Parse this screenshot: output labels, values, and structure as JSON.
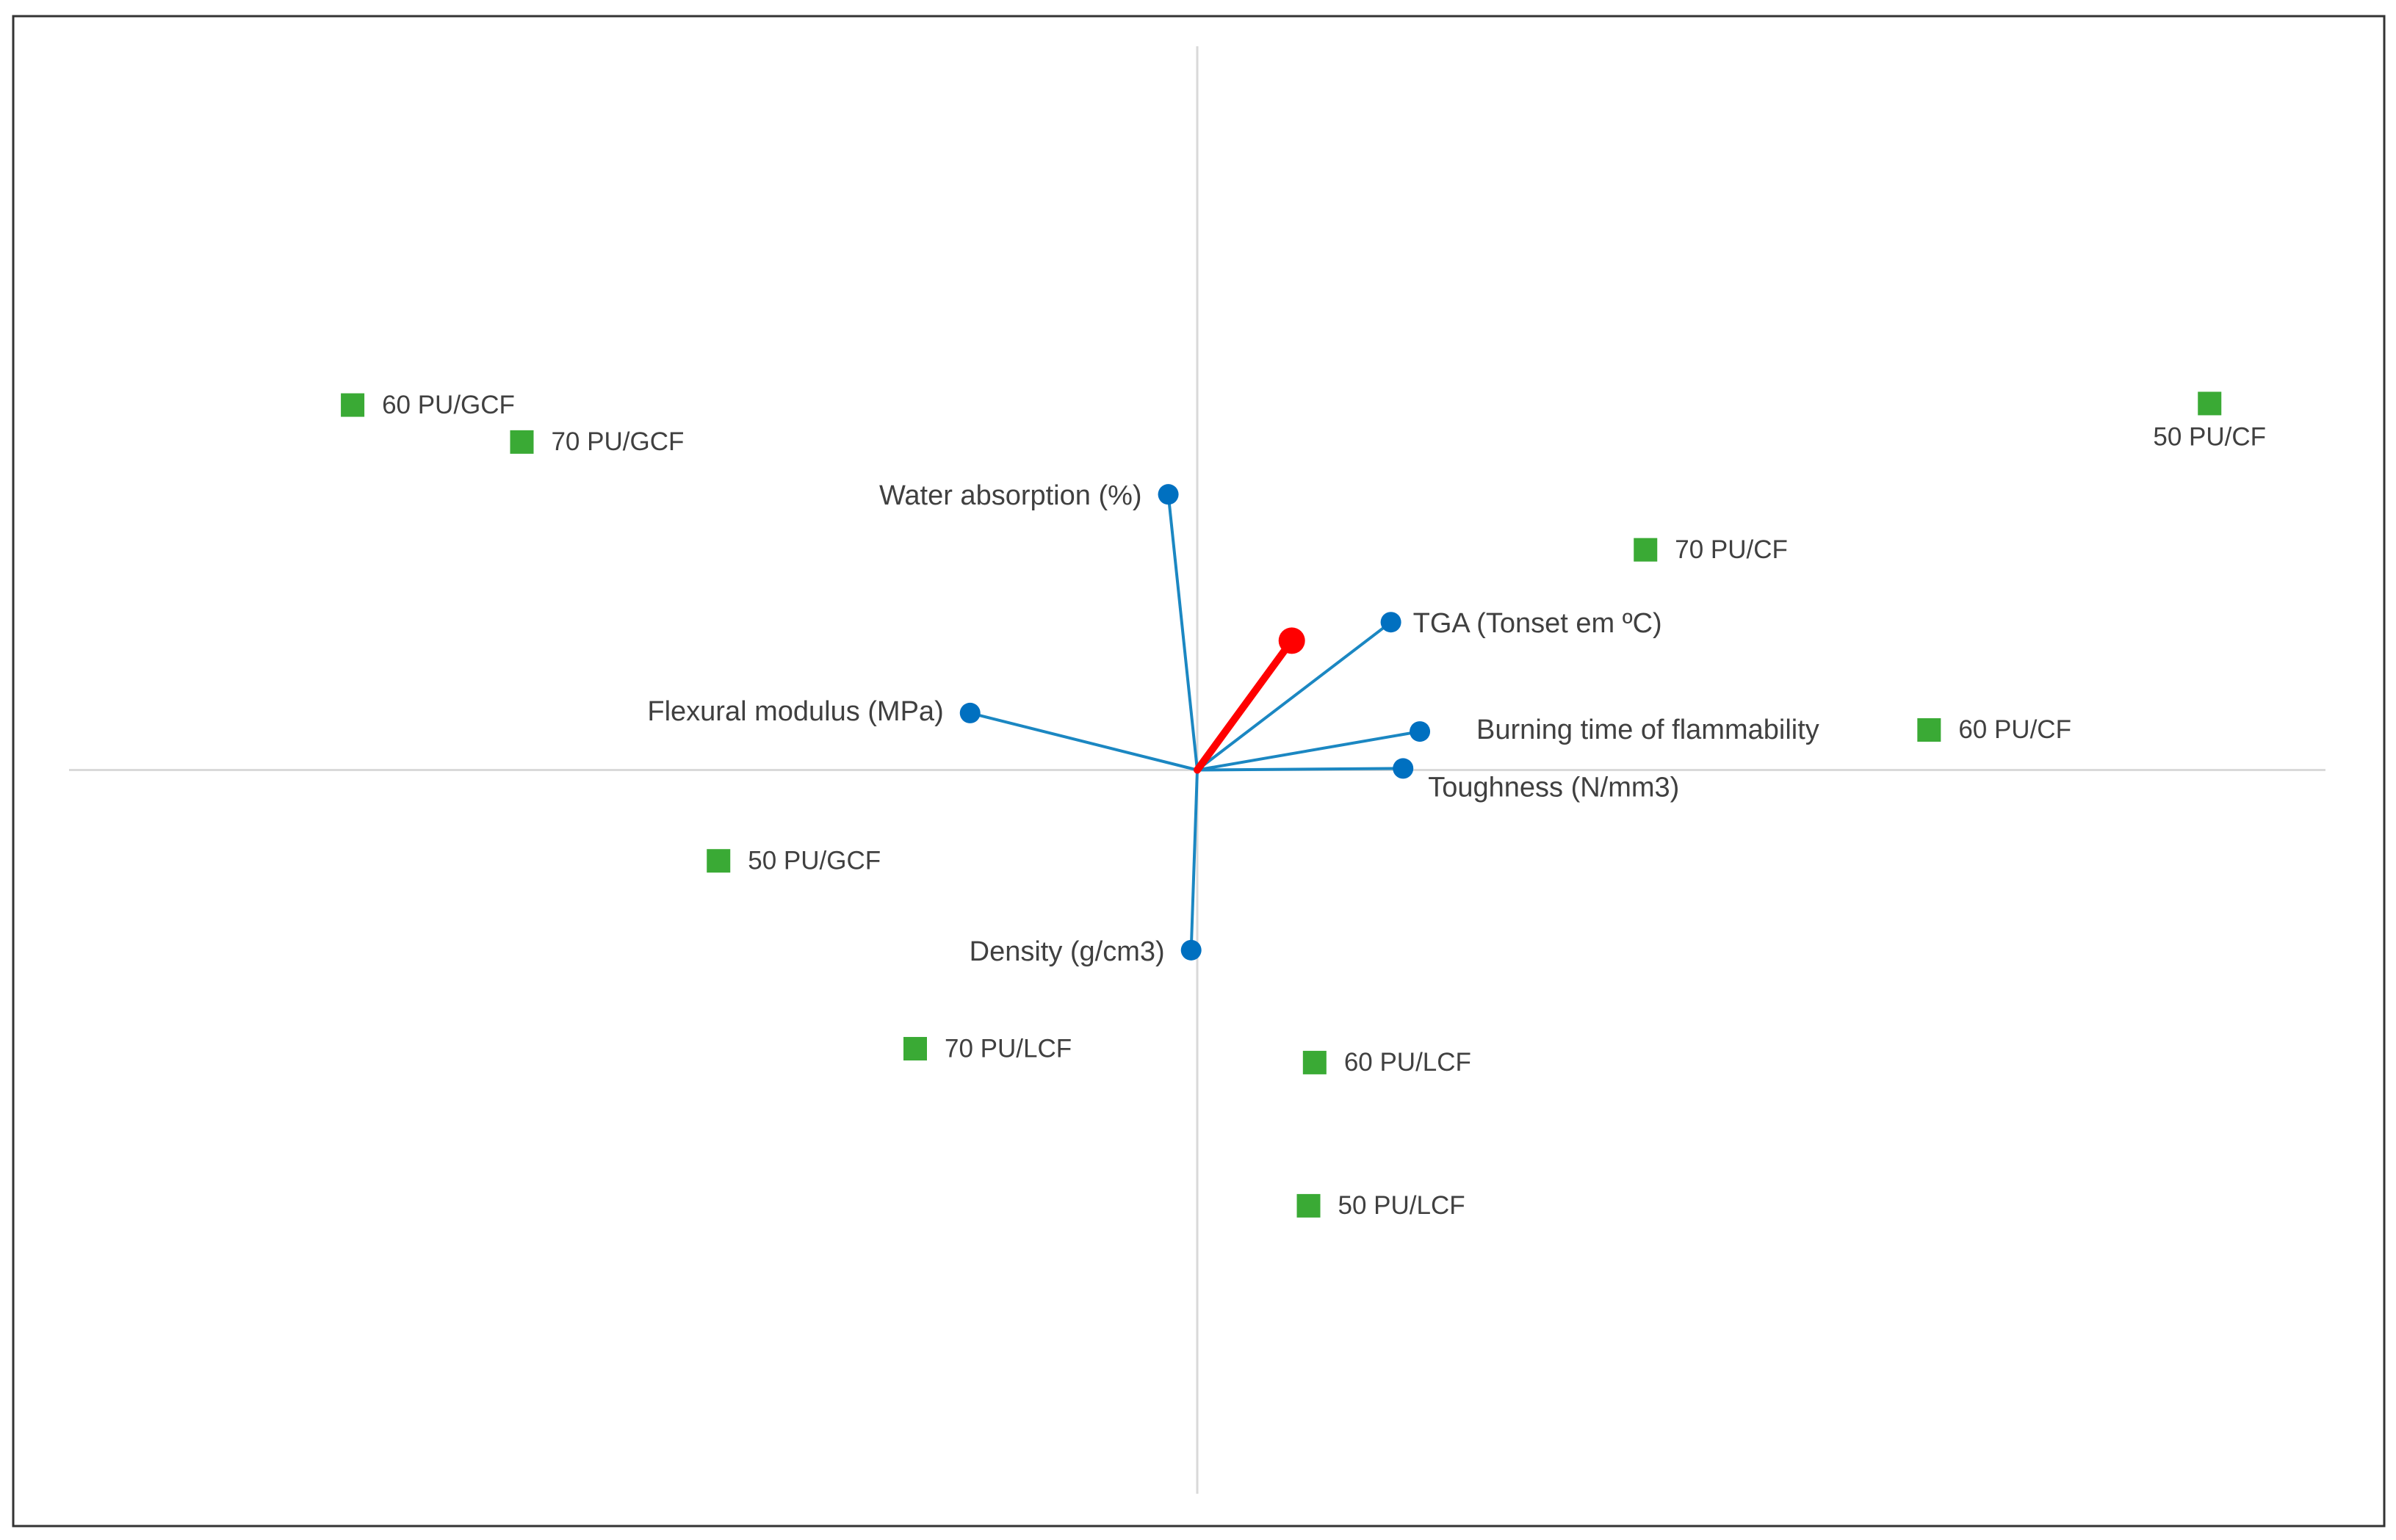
{
  "chart_data": {
    "type": "biplot",
    "xlim": [
      -7.4,
      7.4
    ],
    "ylim": [
      -4.7,
      4.7
    ],
    "scores": {
      "color": "#3aaa35",
      "labels": [
        "60 PU/GCF",
        "70 PU/GCF",
        "50 PU/CF",
        "70 PU/CF",
        "60 PU/CF",
        "50 PU/GCF",
        "70 PU/LCF",
        "60 PU/LCF",
        "50 PU/LCF"
      ],
      "x": [
        -5.54,
        -4.43,
        6.64,
        2.94,
        4.8,
        -3.14,
        -1.85,
        0.77,
        0.73
      ],
      "y": [
        2.37,
        2.13,
        2.38,
        1.43,
        0.26,
        -0.59,
        -1.81,
        -1.9,
        -2.83
      ]
    },
    "loadings": {
      "color": "#0070c0",
      "line_color": "#1b87c2",
      "labels": [
        "Water absorption (%)",
        "TGA (Tonset em ºC)",
        "Flexural modulus (MPa)",
        "Burning time of flammability",
        "Toughness (N/mm3)",
        "Density (g/cm3)"
      ],
      "x": [
        -0.19,
        1.27,
        -1.49,
        1.46,
        1.35,
        -0.04
      ],
      "y": [
        1.79,
        0.96,
        0.37,
        0.25,
        0.01,
        -1.17
      ]
    },
    "vector": {
      "color": "#ff0000",
      "x": 0.62,
      "y": 0.84
    }
  }
}
